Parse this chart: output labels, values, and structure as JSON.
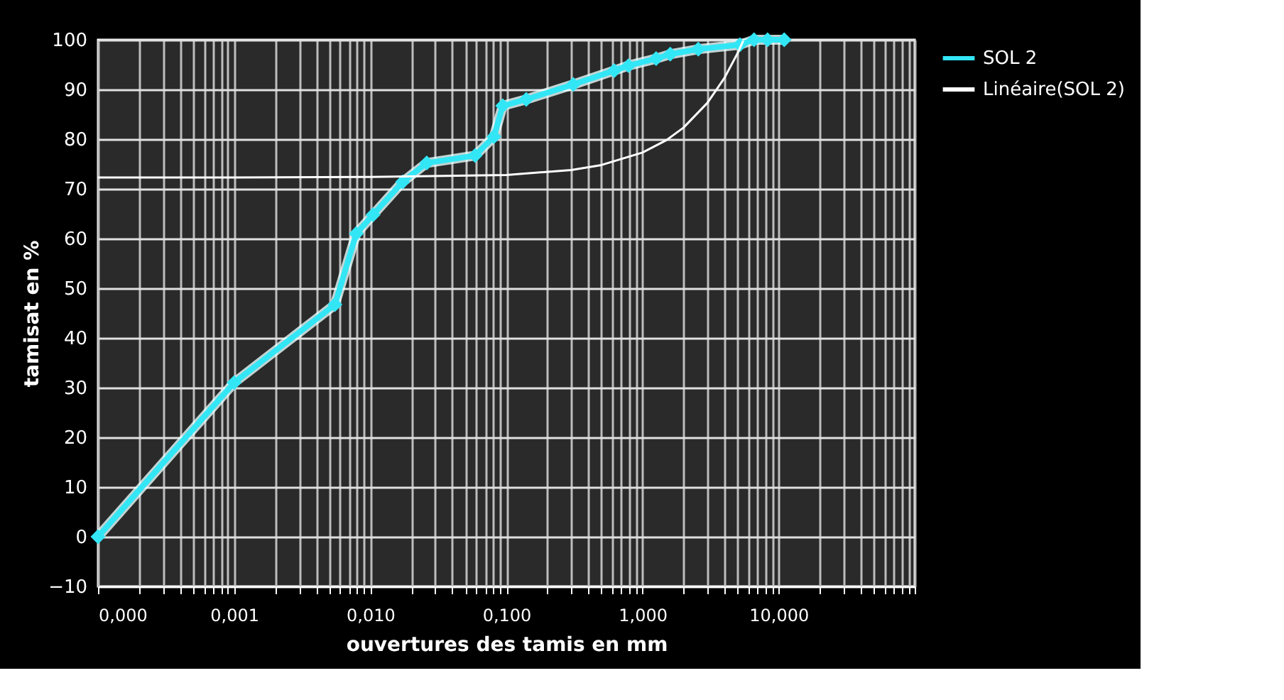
{
  "chart_data": {
    "type": "line",
    "xlabel": "ouvertures des tamis  en mm",
    "ylabel": "tamisat en %",
    "series": [
      {
        "name": "SOL 2",
        "color": "#33e6f5",
        "marker": "diamond",
        "x": [
          0.0001,
          0.001,
          0.0055,
          0.0079,
          0.0105,
          0.0173,
          0.026,
          0.059,
          0.081,
          0.094,
          0.14,
          0.31,
          0.62,
          0.79,
          1.26,
          1.6,
          2.57,
          5.2,
          6.6,
          8.3,
          11
        ],
        "values": [
          0,
          31,
          46.7,
          61,
          64.8,
          71.4,
          75.2,
          76.7,
          80.5,
          86.7,
          88,
          91,
          93.8,
          94.8,
          96.2,
          97.1,
          98.1,
          99,
          100,
          100,
          100
        ]
      },
      {
        "name": "Linéaire(SOL 2)",
        "color": "#ffffff",
        "type": "line",
        "marker": "none",
        "x": [
          0.0001,
          0.001,
          0.01,
          0.1,
          0.3,
          0.5,
          1,
          1.5,
          2,
          3,
          4,
          5,
          5.5
        ],
        "values": [
          72.3,
          72.3,
          72.4,
          72.8,
          73.8,
          74.8,
          77.3,
          79.8,
          82.3,
          87.3,
          92.3,
          97.3,
          99.8
        ]
      }
    ],
    "log": "x",
    "xlim": [
      0.0001,
      100
    ],
    "ylim": [
      -10,
      100
    ],
    "xticks": [
      {
        "value": 0.0001,
        "label": "0,000"
      },
      {
        "value": 0.0002,
        "label": null
      },
      {
        "value": 0.0003,
        "label": null
      },
      {
        "value": 0.0004,
        "label": null
      },
      {
        "value": 0.0005,
        "label": null
      },
      {
        "value": 0.0006,
        "label": null
      },
      {
        "value": 0.0007,
        "label": null
      },
      {
        "value": 0.0008,
        "label": null
      },
      {
        "value": 0.0009,
        "label": null
      },
      {
        "value": 0.001,
        "label": "0,001"
      },
      {
        "value": 0.002,
        "label": null
      },
      {
        "value": 0.003,
        "label": null
      },
      {
        "value": 0.004,
        "label": null
      },
      {
        "value": 0.005,
        "label": null
      },
      {
        "value": 0.006,
        "label": null
      },
      {
        "value": 0.007,
        "label": null
      },
      {
        "value": 0.008,
        "label": null
      },
      {
        "value": 0.009,
        "label": null
      },
      {
        "value": 0.01,
        "label": "0,010"
      },
      {
        "value": 0.02,
        "label": null
      },
      {
        "value": 0.03,
        "label": null
      },
      {
        "value": 0.04,
        "label": null
      },
      {
        "value": 0.05,
        "label": null
      },
      {
        "value": 0.06,
        "label": null
      },
      {
        "value": 0.07,
        "label": null
      },
      {
        "value": 0.08,
        "label": null
      },
      {
        "value": 0.09,
        "label": null
      },
      {
        "value": 0.1,
        "label": "0,100"
      },
      {
        "value": 0.2,
        "label": null
      },
      {
        "value": 0.3,
        "label": null
      },
      {
        "value": 0.4,
        "label": null
      },
      {
        "value": 0.5,
        "label": null
      },
      {
        "value": 0.6,
        "label": null
      },
      {
        "value": 0.7,
        "label": null
      },
      {
        "value": 0.8,
        "label": null
      },
      {
        "value": 0.9,
        "label": null
      },
      {
        "value": 1,
        "label": "1,000"
      },
      {
        "value": 2,
        "label": null
      },
      {
        "value": 3,
        "label": null
      },
      {
        "value": 4,
        "label": null
      },
      {
        "value": 5,
        "label": null
      },
      {
        "value": 6,
        "label": null
      },
      {
        "value": 7,
        "label": null
      },
      {
        "value": 8,
        "label": null
      },
      {
        "value": 9,
        "label": null
      },
      {
        "value": 10,
        "label": "10,000"
      },
      {
        "value": 20,
        "label": null
      },
      {
        "value": 30,
        "label": null
      },
      {
        "value": 40,
        "label": null
      },
      {
        "value": 50,
        "label": null
      },
      {
        "value": 60,
        "label": null
      },
      {
        "value": 70,
        "label": null
      },
      {
        "value": 80,
        "label": null
      },
      {
        "value": 90,
        "label": null
      },
      {
        "value": 100,
        "label": null
      }
    ],
    "yticks": [
      -10,
      0,
      10,
      20,
      30,
      40,
      50,
      60,
      70,
      80,
      90,
      100
    ],
    "grid": true,
    "legend": "right",
    "line_style": "solid"
  }
}
